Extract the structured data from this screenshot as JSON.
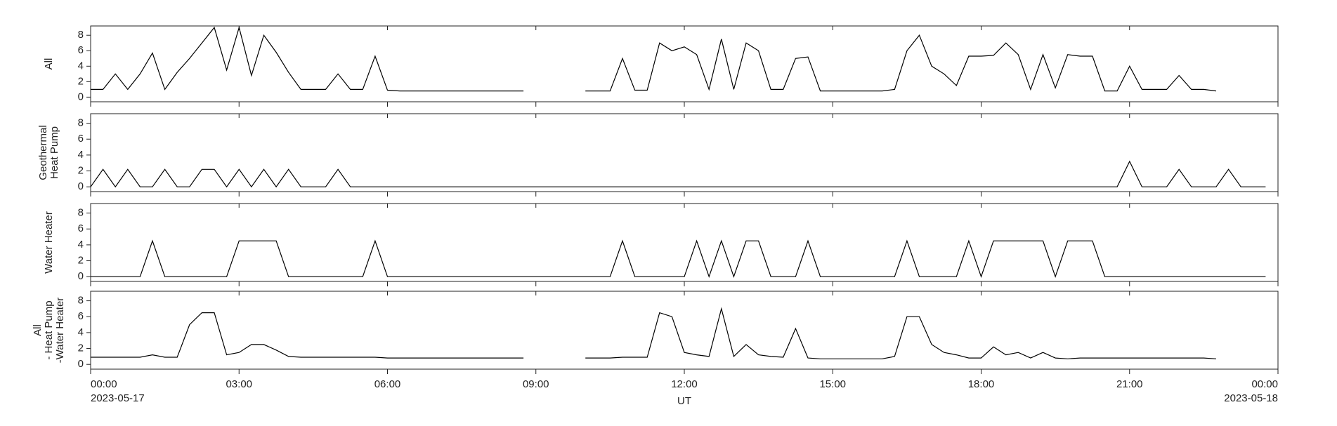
{
  "chart_data": [
    {
      "type": "line",
      "ylabel": [
        "All"
      ],
      "x": [
        0,
        0.25,
        0.5,
        0.75,
        1,
        1.25,
        1.5,
        1.75,
        2,
        2.25,
        2.5,
        2.75,
        3,
        3.25,
        3.5,
        3.75,
        4,
        4.25,
        4.5,
        4.75,
        5,
        5.25,
        5.5,
        5.75,
        6,
        6.25,
        6.5,
        6.75,
        7,
        7.25,
        7.5,
        7.75,
        8,
        8.25,
        8.5,
        8.75,
        9,
        9.25,
        9.5,
        9.75,
        10,
        10.25,
        10.5,
        10.75,
        11,
        11.25,
        11.5,
        11.75,
        12,
        12.25,
        12.5,
        12.75,
        13,
        13.25,
        13.5,
        13.75,
        14,
        14.25,
        14.5,
        14.75,
        15,
        15.25,
        15.5,
        15.75,
        16,
        16.25,
        16.5,
        16.75,
        17,
        17.25,
        17.5,
        17.75,
        18,
        18.25,
        18.5,
        18.75,
        19,
        19.25,
        19.5,
        19.75,
        20,
        20.25,
        20.5,
        20.75,
        21,
        21.25,
        21.5,
        21.75,
        22,
        22.25,
        22.5,
        22.75,
        23,
        23.25,
        23.5,
        23.75
      ],
      "values": [
        1.0,
        1.0,
        3.0,
        1.0,
        3.0,
        5.7,
        1.0,
        3.2,
        5.0,
        7.0,
        9.0,
        3.5,
        9.0,
        2.8,
        8.0,
        5.8,
        3.2,
        1.0,
        1.0,
        1.0,
        3.0,
        1.0,
        1.0,
        5.3,
        0.9,
        0.8,
        0.8,
        0.8,
        0.8,
        0.8,
        0.8,
        0.8,
        0.8,
        0.8,
        0.8,
        0.8,
        null,
        null,
        null,
        null,
        0.8,
        0.8,
        0.8,
        5.0,
        0.9,
        0.9,
        7.0,
        6.0,
        6.5,
        5.5,
        1.0,
        7.5,
        1.0,
        7.0,
        6.0,
        1.0,
        1.0,
        5.0,
        5.2,
        0.8,
        0.8,
        0.8,
        0.8,
        0.8,
        0.8,
        1.0,
        6.0,
        8.0,
        4.0,
        3.0,
        1.5,
        5.3,
        5.3,
        5.4,
        7.0,
        5.5,
        1.0,
        5.5,
        1.2,
        5.5,
        5.3,
        5.3,
        0.8,
        0.8,
        4.0,
        1.0,
        1.0,
        1.0,
        2.8,
        1.0,
        1.0,
        0.8,
        null,
        null,
        null,
        null
      ],
      "xlim": [
        0,
        24
      ],
      "xticks": [
        0,
        3,
        6,
        9,
        12,
        15,
        18,
        21,
        24
      ],
      "ylim": [
        -0.6,
        9.2
      ],
      "yticks": [
        0,
        2,
        4,
        6,
        8
      ]
    },
    {
      "type": "line",
      "ylabel": [
        "Geothermal",
        "Heat Pump"
      ],
      "x": [
        0,
        0.25,
        0.5,
        0.75,
        1,
        1.25,
        1.5,
        1.75,
        2,
        2.25,
        2.5,
        2.75,
        3,
        3.25,
        3.5,
        3.75,
        4,
        4.25,
        4.5,
        4.75,
        5,
        5.25,
        5.5,
        5.75,
        6,
        6.25,
        6.5,
        6.75,
        7,
        7.25,
        7.5,
        7.75,
        8,
        8.25,
        8.5,
        8.75,
        9,
        9.25,
        9.5,
        9.75,
        10,
        10.25,
        10.5,
        10.75,
        11,
        11.25,
        11.5,
        11.75,
        12,
        12.25,
        12.5,
        12.75,
        13,
        13.25,
        13.5,
        13.75,
        14,
        14.25,
        14.5,
        14.75,
        15,
        15.25,
        15.5,
        15.75,
        16,
        16.25,
        16.5,
        16.75,
        17,
        17.25,
        17.5,
        17.75,
        18,
        18.25,
        18.5,
        18.75,
        19,
        19.25,
        19.5,
        19.75,
        20,
        20.25,
        20.5,
        20.75,
        21,
        21.25,
        21.5,
        21.75,
        22,
        22.25,
        22.5,
        22.75,
        23,
        23.25,
        23.5,
        23.75
      ],
      "values": [
        0,
        2.2,
        0,
        2.2,
        0,
        0,
        2.2,
        0,
        0,
        2.2,
        2.2,
        0,
        2.2,
        0,
        2.2,
        0,
        2.2,
        0,
        0,
        0,
        2.2,
        0,
        0,
        0,
        0,
        0,
        0,
        0,
        0,
        0,
        0,
        0,
        0,
        0,
        0,
        0,
        0,
        0,
        0,
        0,
        0,
        0,
        0,
        0,
        0,
        0,
        0,
        0,
        0,
        0,
        0,
        0,
        0,
        0,
        0,
        0,
        0,
        0,
        0,
        0,
        0,
        0,
        0,
        0,
        0,
        0,
        0,
        0,
        0,
        0,
        0,
        0,
        0,
        0,
        0,
        0,
        0,
        0,
        0,
        0,
        0,
        0,
        0,
        0,
        3.2,
        0,
        0,
        0,
        2.2,
        0,
        0,
        0,
        2.2,
        0,
        0,
        0
      ],
      "xlim": [
        0,
        24
      ],
      "xticks": [
        0,
        3,
        6,
        9,
        12,
        15,
        18,
        21,
        24
      ],
      "ylim": [
        -0.6,
        9.2
      ],
      "yticks": [
        0,
        2,
        4,
        6,
        8
      ]
    },
    {
      "type": "line",
      "ylabel": [
        "Water Heater"
      ],
      "x": [
        0,
        0.25,
        0.5,
        0.75,
        1,
        1.25,
        1.5,
        1.75,
        2,
        2.25,
        2.5,
        2.75,
        3,
        3.25,
        3.5,
        3.75,
        4,
        4.25,
        4.5,
        4.75,
        5,
        5.25,
        5.5,
        5.75,
        6,
        6.25,
        6.5,
        6.75,
        7,
        7.25,
        7.5,
        7.75,
        8,
        8.25,
        8.5,
        8.75,
        9,
        9.25,
        9.5,
        9.75,
        10,
        10.25,
        10.5,
        10.75,
        11,
        11.25,
        11.5,
        11.75,
        12,
        12.25,
        12.5,
        12.75,
        13,
        13.25,
        13.5,
        13.75,
        14,
        14.25,
        14.5,
        14.75,
        15,
        15.25,
        15.5,
        15.75,
        16,
        16.25,
        16.5,
        16.75,
        17,
        17.25,
        17.5,
        17.75,
        18,
        18.25,
        18.5,
        18.75,
        19,
        19.25,
        19.5,
        19.75,
        20,
        20.25,
        20.5,
        20.75,
        21,
        21.25,
        21.5,
        21.75,
        22,
        22.25,
        22.5,
        22.75,
        23,
        23.25,
        23.5,
        23.75
      ],
      "values": [
        0,
        0,
        0,
        0,
        0,
        4.5,
        0,
        0,
        0,
        0,
        0,
        0,
        4.5,
        4.5,
        4.5,
        4.5,
        0,
        0,
        0,
        0,
        0,
        0,
        0,
        4.5,
        0,
        0,
        0,
        0,
        0,
        0,
        0,
        0,
        0,
        0,
        0,
        0,
        0,
        0,
        0,
        0,
        0,
        0,
        0,
        4.5,
        0,
        0,
        0,
        0,
        0,
        4.5,
        0,
        4.5,
        0,
        4.5,
        4.5,
        0,
        0,
        0,
        4.5,
        0,
        0,
        0,
        0,
        0,
        0,
        0,
        4.5,
        0,
        0,
        0,
        0,
        4.5,
        0,
        4.5,
        4.5,
        4.5,
        4.5,
        4.5,
        0,
        4.5,
        4.5,
        4.5,
        0,
        0,
        0,
        0,
        0,
        0,
        0,
        0,
        0,
        0,
        0,
        0,
        0,
        0
      ],
      "xlim": [
        0,
        24
      ],
      "xticks": [
        0,
        3,
        6,
        9,
        12,
        15,
        18,
        21,
        24
      ],
      "ylim": [
        -0.6,
        9.2
      ],
      "yticks": [
        0,
        2,
        4,
        6,
        8
      ]
    },
    {
      "type": "line",
      "ylabel": [
        "All",
        "- Heat Pump",
        "-Water Heater"
      ],
      "xlabel": "UT",
      "x": [
        0,
        0.25,
        0.5,
        0.75,
        1,
        1.25,
        1.5,
        1.75,
        2,
        2.25,
        2.5,
        2.75,
        3,
        3.25,
        3.5,
        3.75,
        4,
        4.25,
        4.5,
        4.75,
        5,
        5.25,
        5.5,
        5.75,
        6,
        6.25,
        6.5,
        6.75,
        7,
        7.25,
        7.5,
        7.75,
        8,
        8.25,
        8.5,
        8.75,
        9,
        9.25,
        9.5,
        9.75,
        10,
        10.25,
        10.5,
        10.75,
        11,
        11.25,
        11.5,
        11.75,
        12,
        12.25,
        12.5,
        12.75,
        13,
        13.25,
        13.5,
        13.75,
        14,
        14.25,
        14.5,
        14.75,
        15,
        15.25,
        15.5,
        15.75,
        16,
        16.25,
        16.5,
        16.75,
        17,
        17.25,
        17.5,
        17.75,
        18,
        18.25,
        18.5,
        18.75,
        19,
        19.25,
        19.5,
        19.75,
        20,
        20.25,
        20.5,
        20.75,
        21,
        21.25,
        21.5,
        21.75,
        22,
        22.25,
        22.5,
        22.75,
        23,
        23.25,
        23.5,
        23.75
      ],
      "values": [
        0.9,
        0.9,
        0.9,
        0.9,
        0.9,
        1.2,
        0.9,
        0.9,
        5.0,
        6.5,
        6.5,
        1.2,
        1.5,
        2.5,
        2.5,
        1.8,
        1.0,
        0.9,
        0.9,
        0.9,
        0.9,
        0.9,
        0.9,
        0.9,
        0.8,
        0.8,
        0.8,
        0.8,
        0.8,
        0.8,
        0.8,
        0.8,
        0.8,
        0.8,
        0.8,
        0.8,
        null,
        null,
        null,
        null,
        0.8,
        0.8,
        0.8,
        0.9,
        0.9,
        0.9,
        6.5,
        6.0,
        1.5,
        1.2,
        1.0,
        7.0,
        1.0,
        2.5,
        1.2,
        1.0,
        0.9,
        4.5,
        0.8,
        0.7,
        0.7,
        0.7,
        0.7,
        0.7,
        0.7,
        1.0,
        6.0,
        6.0,
        2.5,
        1.5,
        1.2,
        0.8,
        0.8,
        2.2,
        1.2,
        1.5,
        0.8,
        1.5,
        0.8,
        0.7,
        0.8,
        0.8,
        0.8,
        0.8,
        0.8,
        0.8,
        0.8,
        0.8,
        0.8,
        0.8,
        0.8,
        0.7,
        null,
        null,
        null,
        null
      ],
      "xlim": [
        0,
        24
      ],
      "xticks": [
        {
          "value": 0,
          "label": "00:00"
        },
        {
          "value": 3,
          "label": "03:00"
        },
        {
          "value": 6,
          "label": "06:00"
        },
        {
          "value": 9,
          "label": "09:00"
        },
        {
          "value": 12,
          "label": "12:00"
        },
        {
          "value": 15,
          "label": "15:00"
        },
        {
          "value": 18,
          "label": "18:00"
        },
        {
          "value": 21,
          "label": "21:00"
        },
        {
          "value": 24,
          "label": "00:00"
        }
      ],
      "date_labels": [
        {
          "value": 0,
          "label": "2023-05-17"
        },
        {
          "value": 24,
          "label": "2023-05-18"
        }
      ],
      "ylim": [
        -0.6,
        9.2
      ],
      "yticks": [
        0,
        2,
        4,
        6,
        8
      ]
    }
  ]
}
